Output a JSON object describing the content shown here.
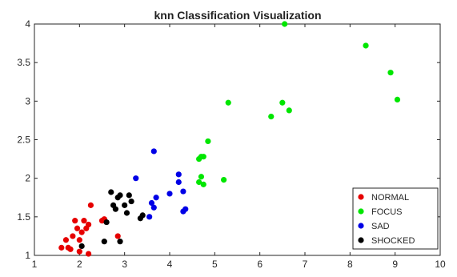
{
  "chart_data": {
    "type": "scatter",
    "title": "knn Classification Visualization",
    "xlabel": "",
    "ylabel": "",
    "xlim": [
      1,
      10
    ],
    "ylim": [
      1,
      4
    ],
    "xticks": [
      1,
      2,
      3,
      4,
      5,
      6,
      7,
      8,
      9,
      10
    ],
    "yticks": [
      1,
      1.5,
      2,
      2.5,
      3,
      3.5,
      4
    ],
    "xtick_labels": [
      "1",
      "2",
      "3",
      "4",
      "5",
      "6",
      "7",
      "8",
      "9",
      "10"
    ],
    "ytick_labels": [
      "1",
      "1.5",
      "2",
      "2.5",
      "3",
      "3.5",
      "4"
    ],
    "grid": false,
    "legend_position": "bottom-right",
    "series": [
      {
        "name": "NORMAL",
        "color": "#e60000",
        "points": [
          [
            1.6,
            1.1
          ],
          [
            1.7,
            1.2
          ],
          [
            1.75,
            1.1
          ],
          [
            1.8,
            1.08
          ],
          [
            1.85,
            1.25
          ],
          [
            1.9,
            1.45
          ],
          [
            1.95,
            1.35
          ],
          [
            2.0,
            1.05
          ],
          [
            2.0,
            1.2
          ],
          [
            2.05,
            1.3
          ],
          [
            2.1,
            1.45
          ],
          [
            2.15,
            1.35
          ],
          [
            2.2,
            1.02
          ],
          [
            2.2,
            1.4
          ],
          [
            2.25,
            1.65
          ],
          [
            2.5,
            1.45
          ],
          [
            2.55,
            1.47
          ],
          [
            2.85,
            1.25
          ]
        ]
      },
      {
        "name": "FOCUS",
        "color": "#00e600",
        "points": [
          [
            4.65,
            1.95
          ],
          [
            4.7,
            2.02
          ],
          [
            4.75,
            1.92
          ],
          [
            4.65,
            2.25
          ],
          [
            4.7,
            2.28
          ],
          [
            4.75,
            2.28
          ],
          [
            4.85,
            2.48
          ],
          [
            5.2,
            1.98
          ],
          [
            5.3,
            2.98
          ],
          [
            6.25,
            2.8
          ],
          [
            6.5,
            2.98
          ],
          [
            6.65,
            2.88
          ],
          [
            6.55,
            4.0
          ],
          [
            8.35,
            3.72
          ],
          [
            8.9,
            3.37
          ],
          [
            9.05,
            3.02
          ]
        ]
      },
      {
        "name": "SAD",
        "color": "#0000e6",
        "points": [
          [
            3.25,
            2.0
          ],
          [
            3.55,
            1.5
          ],
          [
            3.6,
            1.68
          ],
          [
            3.65,
            1.62
          ],
          [
            3.65,
            2.35
          ],
          [
            3.7,
            1.75
          ],
          [
            4.0,
            1.8
          ],
          [
            4.2,
            1.95
          ],
          [
            4.2,
            2.05
          ],
          [
            4.3,
            1.83
          ],
          [
            4.3,
            1.57
          ],
          [
            4.35,
            1.6
          ]
        ]
      },
      {
        "name": "SHOCKED",
        "color": "#000000",
        "points": [
          [
            2.05,
            1.12
          ],
          [
            2.55,
            1.18
          ],
          [
            2.6,
            1.43
          ],
          [
            2.7,
            1.82
          ],
          [
            2.75,
            1.65
          ],
          [
            2.8,
            1.6
          ],
          [
            2.85,
            1.75
          ],
          [
            2.9,
            1.78
          ],
          [
            2.9,
            1.18
          ],
          [
            3.0,
            1.65
          ],
          [
            3.05,
            1.55
          ],
          [
            3.1,
            1.78
          ],
          [
            3.15,
            1.7
          ],
          [
            3.35,
            1.48
          ],
          [
            3.4,
            1.52
          ]
        ]
      }
    ]
  }
}
